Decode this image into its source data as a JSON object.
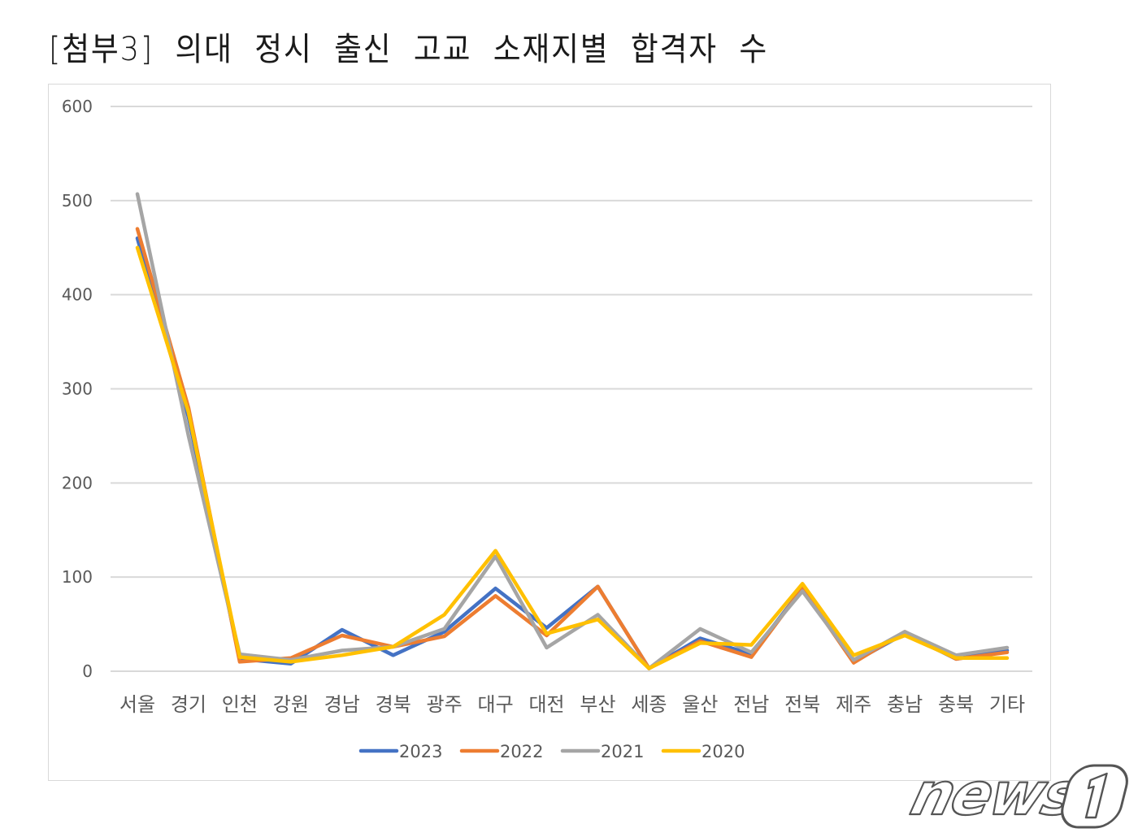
{
  "page": {
    "title": "[첨부3] 의대 정시 출신 고교 소재지별 합격자 수",
    "watermark": "news1"
  },
  "chart_data": {
    "type": "line",
    "title": "[첨부3] 의대 정시 출신 고교 소재지별 합격자 수",
    "xlabel": "",
    "ylabel": "",
    "ylim": [
      0,
      600
    ],
    "yticks": [
      0,
      100,
      200,
      300,
      400,
      500,
      600
    ],
    "grid": true,
    "legend_position": "bottom",
    "categories": [
      "서울",
      "경기",
      "인천",
      "강원",
      "경남",
      "경북",
      "광주",
      "대구",
      "대전",
      "부산",
      "세종",
      "울산",
      "전남",
      "전북",
      "제주",
      "충남",
      "충북",
      "기타"
    ],
    "series": [
      {
        "name": "2023",
        "color": "#4472c4",
        "values": [
          460,
          270,
          13,
          8,
          44,
          17,
          42,
          88,
          46,
          90,
          3,
          35,
          18,
          88,
          10,
          40,
          13,
          22
        ]
      },
      {
        "name": "2022",
        "color": "#ed7d31",
        "values": [
          470,
          280,
          10,
          14,
          38,
          26,
          37,
          80,
          38,
          90,
          3,
          32,
          15,
          88,
          9,
          42,
          13,
          20
        ]
      },
      {
        "name": "2021",
        "color": "#a5a5a5",
        "values": [
          507,
          250,
          18,
          12,
          22,
          26,
          45,
          122,
          25,
          60,
          3,
          45,
          20,
          85,
          12,
          42,
          17,
          25
        ]
      },
      {
        "name": "2020",
        "color": "#ffc000",
        "values": [
          450,
          275,
          15,
          10,
          17,
          26,
          60,
          128,
          40,
          55,
          3,
          30,
          28,
          93,
          17,
          38,
          14,
          14
        ]
      }
    ]
  }
}
